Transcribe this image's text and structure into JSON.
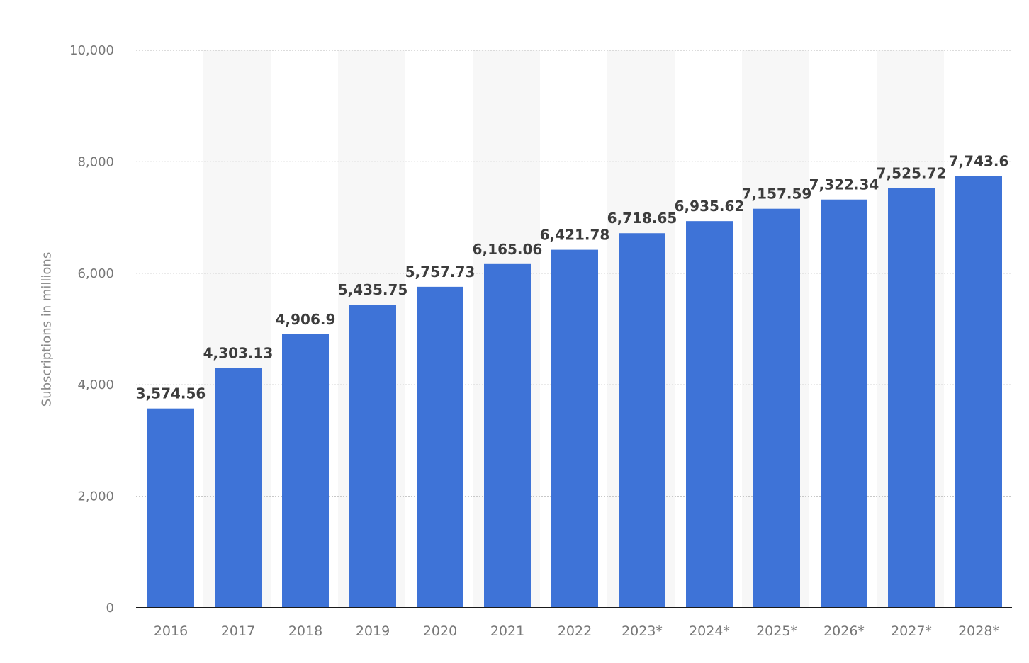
{
  "chart_data": {
    "type": "bar",
    "title": "",
    "xlabel": "",
    "ylabel": "Subscriptions in millions",
    "ylim": [
      0,
      10000
    ],
    "yticks": [
      0,
      2000,
      4000,
      6000,
      8000,
      10000
    ],
    "ytick_labels": [
      "0",
      "2,000",
      "4,000",
      "6,000",
      "8,000",
      "10,000"
    ],
    "grid": true,
    "legend": "none",
    "categories": [
      "2016",
      "2017",
      "2018",
      "2019",
      "2020",
      "2021",
      "2022",
      "2023*",
      "2024*",
      "2025*",
      "2026*",
      "2027*",
      "2028*"
    ],
    "values": [
      3574.56,
      4303.13,
      4906.9,
      5435.75,
      5757.73,
      6165.06,
      6421.78,
      6718.65,
      6935.62,
      7157.59,
      7322.34,
      7525.72,
      7743.6
    ],
    "value_labels": [
      "3,574.56",
      "4,303.13",
      "4,906.9",
      "5,435.75",
      "5,757.73",
      "6,165.06",
      "6,421.78",
      "6,718.65",
      "6,935.62",
      "7,157.59",
      "7,322.34",
      "7,525.72",
      "7,743.6"
    ],
    "colors": {
      "bar": "#3e73d7",
      "axis": "#1a1a1a",
      "grid": "#c8c8c8",
      "band": "#f7f7f7",
      "tick_text": "#777777",
      "value_text": "#3c3c3c"
    }
  }
}
